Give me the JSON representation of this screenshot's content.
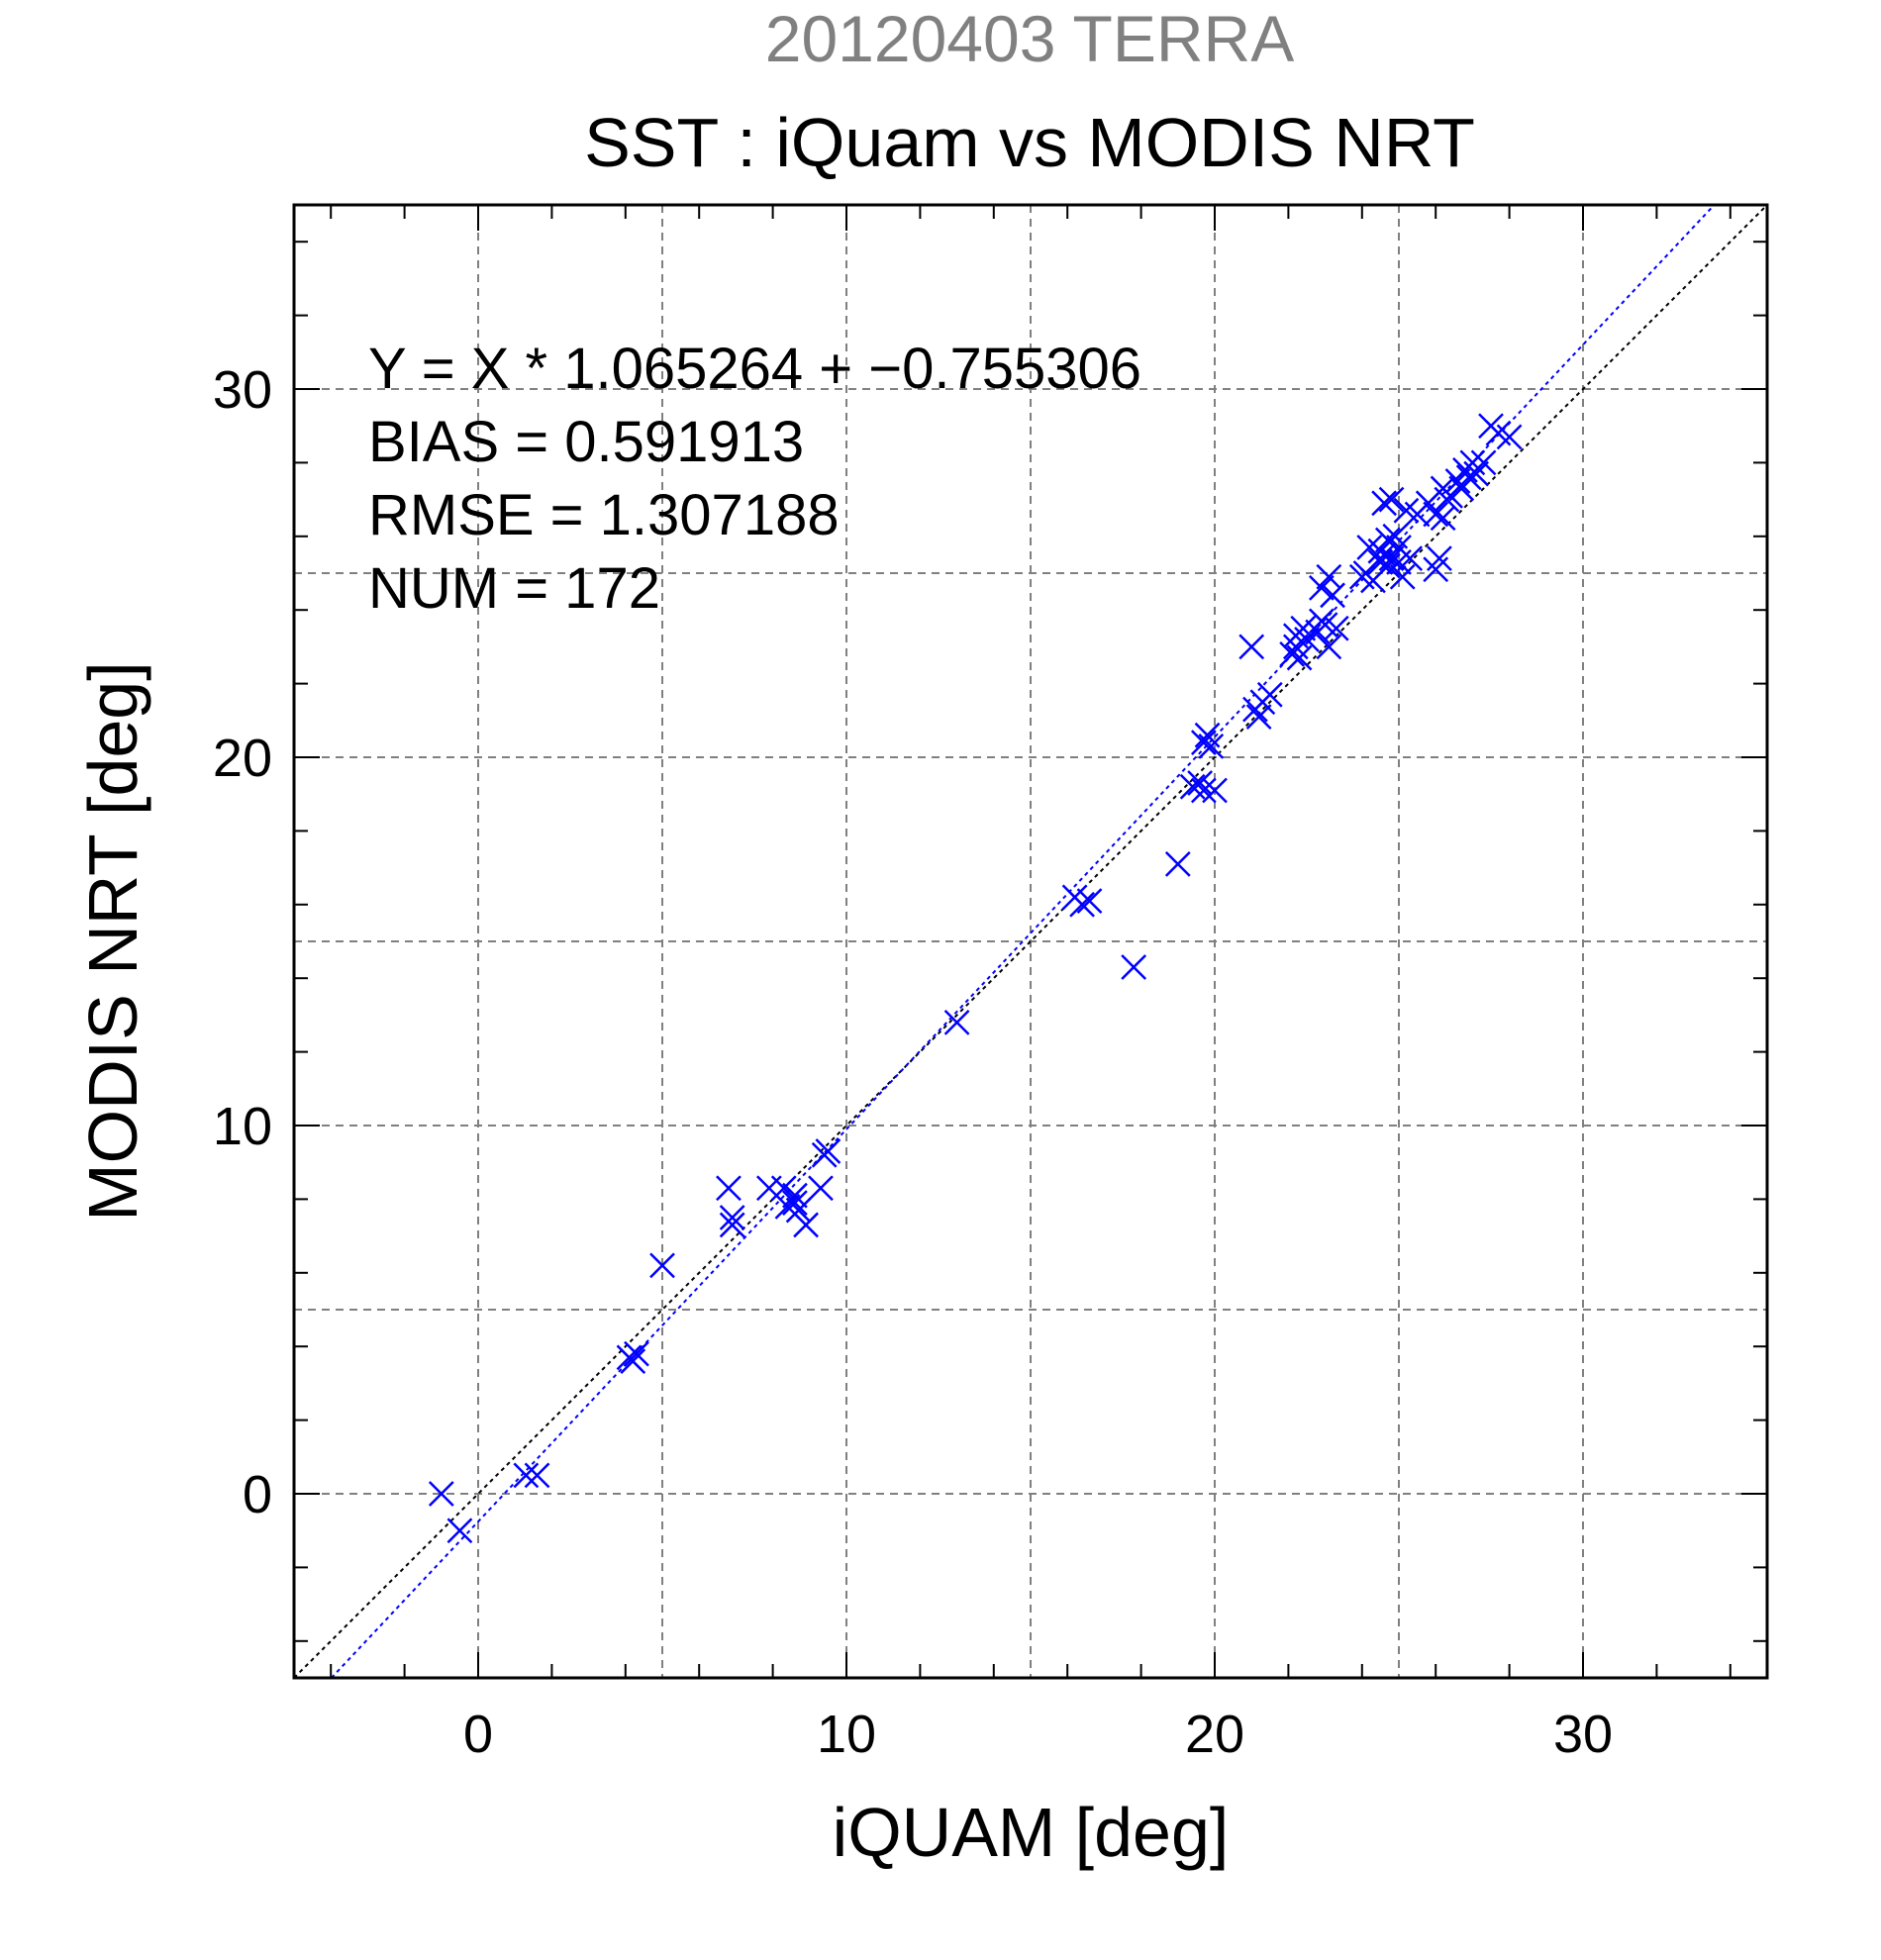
{
  "chart_data": {
    "type": "scatter",
    "supertitle": "20120403 TERRA",
    "title": "SST : iQuam vs MODIS NRT",
    "xlabel": "iQUAM [deg]",
    "ylabel": "MODIS NRT [deg]",
    "xlim": [
      -5,
      35
    ],
    "ylim": [
      -5,
      35
    ],
    "xticks": [
      0,
      10,
      20,
      30
    ],
    "yticks": [
      0,
      10,
      20,
      30
    ],
    "x_tick_labels": [
      "0",
      "10",
      "20",
      "30"
    ],
    "y_tick_labels": [
      "0",
      "10",
      "20",
      "30"
    ],
    "grid": true,
    "stats": {
      "equation": "Y = X * 1.065264 + −0.755306",
      "bias": "BIAS = 0.591913",
      "rmse": "RMSE = 1.307188",
      "num": "NUM = 172"
    },
    "regression": {
      "slope": 1.065264,
      "intercept": -0.755306
    },
    "colors": {
      "points": "#0000ff",
      "regression": "#0000ff",
      "one_to_one": "#000000",
      "supertitle": "#808080",
      "grid": "#808080"
    },
    "marker": "x",
    "points": [
      [
        -1.0,
        0.0
      ],
      [
        -0.5,
        -1.0
      ],
      [
        1.3,
        0.5
      ],
      [
        1.6,
        0.5
      ],
      [
        4.1,
        3.7
      ],
      [
        4.3,
        3.8
      ],
      [
        4.2,
        3.6
      ],
      [
        5.0,
        6.2
      ],
      [
        6.8,
        8.3
      ],
      [
        6.9,
        7.3
      ],
      [
        6.9,
        7.5
      ],
      [
        7.9,
        8.3
      ],
      [
        8.3,
        8.3
      ],
      [
        8.4,
        7.8
      ],
      [
        8.6,
        7.9
      ],
      [
        8.7,
        7.7
      ],
      [
        8.6,
        8.1
      ],
      [
        8.9,
        7.3
      ],
      [
        9.3,
        8.3
      ],
      [
        9.4,
        9.2
      ],
      [
        9.5,
        9.3
      ],
      [
        13.0,
        12.8
      ],
      [
        16.2,
        16.2
      ],
      [
        16.4,
        16.0
      ],
      [
        16.6,
        16.1
      ],
      [
        17.8,
        14.3
      ],
      [
        19.0,
        17.1
      ],
      [
        19.4,
        19.2
      ],
      [
        19.6,
        19.3
      ],
      [
        19.7,
        19.1
      ],
      [
        19.7,
        20.4
      ],
      [
        19.8,
        20.6
      ],
      [
        19.9,
        20.3
      ],
      [
        20.0,
        19.1
      ],
      [
        21.0,
        23.0
      ],
      [
        21.1,
        21.3
      ],
      [
        21.3,
        21.5
      ],
      [
        21.2,
        21.1
      ],
      [
        21.5,
        21.7
      ],
      [
        22.1,
        22.8
      ],
      [
        22.2,
        23.0
      ],
      [
        22.2,
        23.3
      ],
      [
        22.3,
        22.7
      ],
      [
        22.5,
        23.2
      ],
      [
        22.4,
        23.5
      ],
      [
        22.8,
        23.4
      ],
      [
        22.9,
        24.6
      ],
      [
        22.9,
        23.7
      ],
      [
        23.0,
        23.6
      ],
      [
        23.1,
        24.9
      ],
      [
        23.1,
        23.0
      ],
      [
        23.2,
        24.4
      ],
      [
        23.3,
        23.5
      ],
      [
        24.0,
        24.9
      ],
      [
        24.1,
        25.0
      ],
      [
        24.2,
        25.7
      ],
      [
        24.3,
        24.8
      ],
      [
        24.5,
        25.3
      ],
      [
        24.5,
        25.6
      ],
      [
        24.6,
        26.9
      ],
      [
        24.6,
        25.5
      ],
      [
        24.7,
        25.9
      ],
      [
        24.7,
        25.2
      ],
      [
        24.8,
        25.4
      ],
      [
        24.8,
        27.0
      ],
      [
        24.9,
        26.0
      ],
      [
        25.0,
        25.3
      ],
      [
        25.0,
        25.7
      ],
      [
        25.1,
        24.9
      ],
      [
        25.2,
        26.7
      ],
      [
        25.3,
        25.4
      ],
      [
        25.5,
        26.6
      ],
      [
        25.8,
        26.9
      ],
      [
        26.0,
        26.6
      ],
      [
        26.0,
        25.1
      ],
      [
        26.1,
        25.4
      ],
      [
        26.2,
        26.5
      ],
      [
        26.2,
        27.3
      ],
      [
        26.3,
        27.0
      ],
      [
        26.4,
        27.1
      ],
      [
        26.6,
        27.5
      ],
      [
        26.7,
        27.3
      ],
      [
        26.8,
        27.8
      ],
      [
        26.9,
        27.6
      ],
      [
        27.0,
        28.0
      ],
      [
        27.1,
        27.7
      ],
      [
        27.3,
        28.0
      ],
      [
        27.5,
        29.0
      ],
      [
        27.7,
        28.8
      ],
      [
        28.0,
        28.7
      ]
    ]
  }
}
